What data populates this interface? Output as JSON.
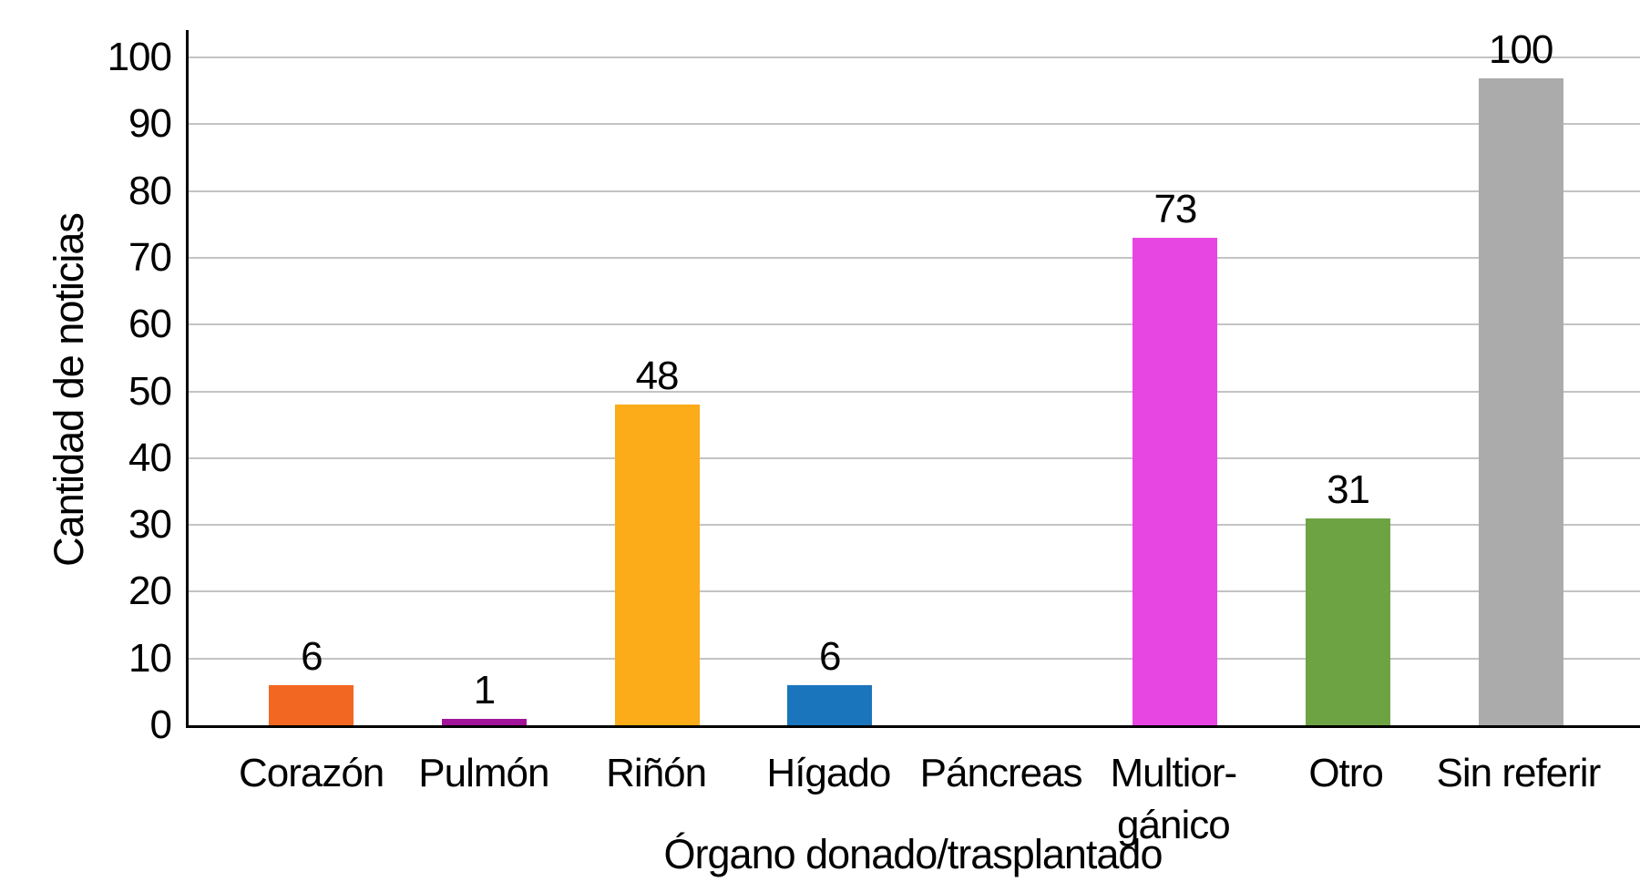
{
  "chart_data": {
    "type": "bar",
    "title": "",
    "xlabel": "Órgano donado/trasplantado",
    "ylabel": "Cantidad de noticias",
    "categories": [
      "Corazón",
      "Pulmón",
      "Riñón",
      "Hígado",
      "Páncreas",
      "Multior-\ngánico",
      "Otro",
      "Sin referir"
    ],
    "values": [
      6,
      1,
      48,
      6,
      0,
      73,
      31,
      100
    ],
    "value_labels": [
      "6",
      "1",
      "48",
      "6",
      "",
      "73",
      "31",
      "100"
    ],
    "bar_colors": [
      "#F26722",
      "#A2149B",
      "#FBAC18",
      "#1B75BC",
      "transparent",
      "#E846E2",
      "#6EA344",
      "#ABABAB"
    ],
    "y_ticks": [
      0,
      10,
      20,
      30,
      40,
      50,
      60,
      70,
      80,
      90,
      100
    ],
    "ylim": [
      0,
      104
    ],
    "grid": "horizontal-only",
    "legend": "none",
    "colors": {
      "grid": "#C3C3C3",
      "axis": "#000000",
      "text": "#000000",
      "background": "#FFFFFF"
    }
  }
}
